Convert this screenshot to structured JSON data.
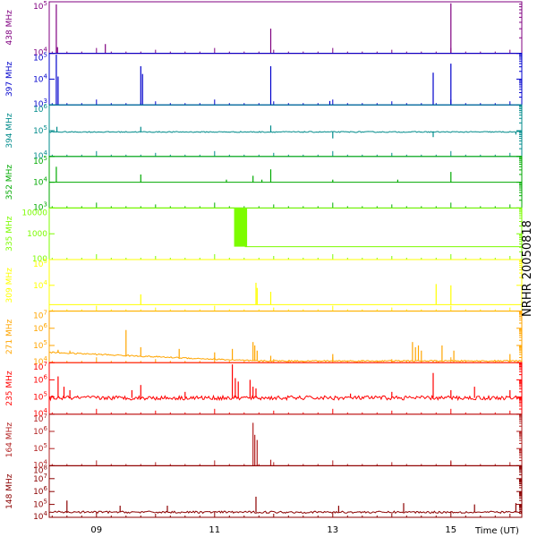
{
  "figure": {
    "station_label": "NRHR 20050818",
    "x_axis_label": "Time (UT)",
    "x_ticks": [
      "09",
      "11",
      "13",
      "15"
    ],
    "background": "#ffffff"
  },
  "chart_data": {
    "type": "line",
    "x_unit": "hour UT",
    "xlim": [
      8.2,
      16.2
    ],
    "x_ticks": [
      9,
      11,
      13,
      15
    ],
    "x_ticks_labels": [
      "09",
      "11",
      "13",
      "15"
    ],
    "x_minor_step": 0.25,
    "xlabel": "Time (UT)",
    "grid": false,
    "panels": [
      {
        "label": "438 MHz",
        "color": "#800080",
        "scale": "log",
        "ylim": [
          4,
          5
        ],
        "y_ticks": [
          {
            "v": 4,
            "t": "10^4"
          },
          {
            "v": 5,
            "t": "10^5"
          }
        ],
        "baseline": 4.0,
        "noise": 0,
        "shape": "flat",
        "spikes": [
          [
            8.32,
            4.95
          ],
          [
            8.34,
            4.12
          ],
          [
            9.15,
            4.18
          ],
          [
            11.95,
            4.48
          ],
          [
            15.0,
            4.97
          ]
        ],
        "blocks": []
      },
      {
        "label": "397 MHz",
        "color": "#0000cc",
        "scale": "log",
        "ylim": [
          3,
          5
        ],
        "y_ticks": [
          {
            "v": 3,
            "t": "10^3"
          },
          {
            "v": 4,
            "t": "10^4"
          },
          {
            "v": 5,
            "t": "10^5"
          }
        ],
        "baseline": 3.0,
        "noise": 0,
        "shape": "flat",
        "spikes": [
          [
            8.32,
            4.95
          ],
          [
            8.35,
            4.1
          ],
          [
            9.75,
            4.5
          ],
          [
            9.78,
            4.2
          ],
          [
            11.95,
            4.5
          ],
          [
            12.95,
            3.15
          ],
          [
            14.7,
            4.25
          ],
          [
            15.0,
            4.6
          ]
        ],
        "blocks": []
      },
      {
        "label": "394 MHz",
        "color": "#008b8b",
        "scale": "log",
        "ylim": [
          4,
          6
        ],
        "y_ticks": [
          {
            "v": 4,
            "t": "10^4"
          },
          {
            "v": 5,
            "t": "10^5"
          },
          {
            "v": 6,
            "t": "10^6"
          }
        ],
        "baseline": 4.95,
        "noise": 0.02,
        "shape": "flat",
        "spikes": [
          [
            8.33,
            5.15
          ],
          [
            9.75,
            5.15
          ],
          [
            11.95,
            5.2
          ],
          [
            13.0,
            4.7
          ],
          [
            14.7,
            4.75
          ],
          [
            16.1,
            4.85
          ]
        ],
        "blocks": []
      },
      {
        "label": "352 MHz",
        "color": "#00aa00",
        "scale": "log",
        "ylim": [
          3,
          5
        ],
        "y_ticks": [
          {
            "v": 3,
            "t": "10^3"
          },
          {
            "v": 4,
            "t": "10^4"
          },
          {
            "v": 5,
            "t": "10^5"
          }
        ],
        "baseline": 4.0,
        "noise": 0,
        "shape": "flat",
        "spikes": [
          [
            8.32,
            4.6
          ],
          [
            9.75,
            4.3
          ],
          [
            11.2,
            4.1
          ],
          [
            11.65,
            4.25
          ],
          [
            11.8,
            4.1
          ],
          [
            11.95,
            4.5
          ],
          [
            13.0,
            4.1
          ],
          [
            14.1,
            4.1
          ],
          [
            15.0,
            4.4
          ]
        ],
        "blocks": []
      },
      {
        "label": "335 MHz",
        "color": "#7cfc00",
        "scale": "log",
        "ylim": [
          2,
          4
        ],
        "y_ticks": [
          {
            "v": 2,
            "t": "100"
          },
          {
            "v": 3,
            "t": "1000"
          },
          {
            "v": 4,
            "t": "10000"
          }
        ],
        "baseline": 4.0,
        "noise": 0,
        "shape": "step",
        "step_at": 11.5,
        "after": 2.5,
        "spikes": [],
        "blocks": [
          [
            11.33,
            11.55,
            2.5,
            4.0
          ]
        ]
      },
      {
        "label": "309 MHz",
        "color": "#ffff00",
        "scale": "log",
        "ylim": [
          3,
          5
        ],
        "y_ticks": [
          {
            "v": 4,
            "t": "10^4"
          },
          {
            "v": 5,
            "t": "10^5"
          }
        ],
        "baseline": 3.25,
        "noise": 0,
        "shape": "flat",
        "spikes": [
          [
            9.75,
            3.65
          ],
          [
            11.7,
            4.1
          ],
          [
            11.72,
            3.9
          ],
          [
            11.95,
            3.75
          ],
          [
            14.75,
            4.05
          ],
          [
            15.0,
            4.0
          ]
        ],
        "blocks": []
      },
      {
        "label": "271 MHz",
        "color": "#ffa500",
        "scale": "log",
        "ylim": [
          4,
          7
        ],
        "y_ticks": [
          {
            "v": 4,
            "t": "10^4"
          },
          {
            "v": 5,
            "t": "10^5"
          },
          {
            "v": 6,
            "t": "10^6"
          },
          {
            "v": 7,
            "t": "10^7"
          }
        ],
        "baseline": 4.1,
        "noise": 0.04,
        "shape": "decline",
        "start": 4.6,
        "min_x": 11.7,
        "spikes": [
          [
            8.35,
            4.75
          ],
          [
            8.55,
            4.7
          ],
          [
            9.5,
            5.9
          ],
          [
            9.75,
            4.9
          ],
          [
            10.4,
            4.8
          ],
          [
            11.0,
            4.6
          ],
          [
            11.3,
            4.8
          ],
          [
            11.65,
            5.2
          ],
          [
            11.68,
            5.0
          ],
          [
            11.72,
            4.7
          ],
          [
            11.95,
            4.4
          ],
          [
            13.0,
            4.5
          ],
          [
            14.35,
            5.2
          ],
          [
            14.4,
            4.9
          ],
          [
            14.45,
            5.0
          ],
          [
            14.5,
            4.7
          ],
          [
            14.85,
            5.0
          ],
          [
            15.05,
            4.7
          ],
          [
            16.0,
            4.5
          ]
        ],
        "blocks": []
      },
      {
        "label": "235 MHz",
        "color": "#ff0000",
        "scale": "log",
        "ylim": [
          4,
          7
        ],
        "y_ticks": [
          {
            "v": 4,
            "t": "10^4"
          },
          {
            "v": 5,
            "t": "10^5"
          },
          {
            "v": 6,
            "t": "10^6"
          },
          {
            "v": 7,
            "t": "10^7"
          }
        ],
        "baseline": 4.95,
        "noise": 0.12,
        "shape": "flat",
        "spikes": [
          [
            8.35,
            6.2
          ],
          [
            8.45,
            5.6
          ],
          [
            8.55,
            5.4
          ],
          [
            9.6,
            5.4
          ],
          [
            9.75,
            5.7
          ],
          [
            10.5,
            5.3
          ],
          [
            11.3,
            6.9
          ],
          [
            11.35,
            6.1
          ],
          [
            11.4,
            5.9
          ],
          [
            11.6,
            6.0
          ],
          [
            11.65,
            5.6
          ],
          [
            11.7,
            5.5
          ],
          [
            13.3,
            5.2
          ],
          [
            14.0,
            5.3
          ],
          [
            14.7,
            6.4
          ],
          [
            15.0,
            5.4
          ],
          [
            15.4,
            5.6
          ],
          [
            16.0,
            5.4
          ]
        ],
        "blocks": []
      },
      {
        "label": "164 MHz",
        "color": "#b22222",
        "scale": "log",
        "ylim": [
          4,
          7
        ],
        "y_ticks": [
          {
            "v": 4,
            "t": "10^4"
          },
          {
            "v": 5,
            "t": "10^5"
          },
          {
            "v": 6,
            "t": "10^6"
          },
          {
            "v": 7,
            "t": "10^7"
          }
        ],
        "baseline": 4.0,
        "noise": 0,
        "shape": "flat",
        "spikes": [
          [
            11.65,
            6.5
          ],
          [
            11.68,
            5.8
          ],
          [
            11.72,
            5.5
          ],
          [
            11.95,
            4.35
          ],
          [
            15.0,
            4.25
          ]
        ],
        "blocks": []
      },
      {
        "label": "148 MHz",
        "color": "#8b0000",
        "scale": "log",
        "ylim": [
          4,
          8
        ],
        "y_ticks": [
          {
            "v": 4,
            "t": "10^4"
          },
          {
            "v": 5,
            "t": "10^5"
          },
          {
            "v": 6,
            "t": "10^6"
          },
          {
            "v": 7,
            "t": "10^7"
          },
          {
            "v": 8,
            "t": "10^8"
          }
        ],
        "baseline": 4.4,
        "noise": 0.08,
        "shape": "flat",
        "spikes": [
          [
            8.5,
            5.3
          ],
          [
            9.4,
            4.9
          ],
          [
            10.2,
            4.9
          ],
          [
            11.7,
            5.6
          ],
          [
            13.1,
            4.9
          ],
          [
            14.2,
            5.1
          ],
          [
            15.4,
            5.0
          ],
          [
            16.1,
            5.1
          ]
        ],
        "blocks": []
      }
    ]
  }
}
